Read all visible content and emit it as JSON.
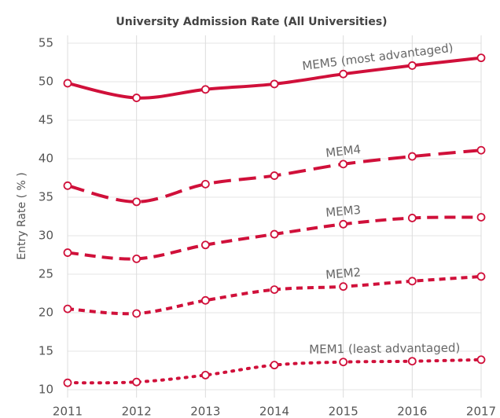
{
  "chart_data": {
    "type": "line",
    "title": "University Admission Rate (All Universities)",
    "y_label": "Entry Rate ( % )",
    "x": [
      2011,
      2012,
      2013,
      2014,
      2015,
      2016,
      2017
    ],
    "xlim": [
      2011,
      2017
    ],
    "xticks": [
      2011,
      2012,
      2013,
      2014,
      2015,
      2016,
      2017
    ],
    "ylim": [
      10,
      55
    ],
    "yticks": [
      10,
      15,
      20,
      25,
      30,
      35,
      40,
      45,
      50,
      55
    ],
    "grid": true,
    "series": [
      {
        "name": "MEM5 (most advantaged)",
        "color": "#d0103a",
        "dash": "solid",
        "values": [
          49.8,
          47.9,
          49.0,
          49.7,
          51.0,
          52.1,
          53.1
        ]
      },
      {
        "name": "MEM4",
        "color": "#d0103a",
        "dash": "long-dash",
        "values": [
          36.5,
          34.4,
          36.7,
          37.8,
          39.3,
          40.3,
          41.1
        ]
      },
      {
        "name": "MEM3",
        "color": "#d0103a",
        "dash": "dash",
        "values": [
          27.8,
          27.0,
          28.8,
          30.2,
          31.5,
          32.3,
          32.4
        ]
      },
      {
        "name": "MEM2",
        "color": "#d0103a",
        "dash": "short-dash",
        "values": [
          20.5,
          19.9,
          21.6,
          23.0,
          23.4,
          24.1,
          24.7
        ]
      },
      {
        "name": "MEM1 (least advantaged)",
        "color": "#d0103a",
        "dash": "dot",
        "values": [
          10.9,
          11.0,
          11.9,
          13.2,
          13.6,
          13.7,
          13.9
        ]
      }
    ]
  }
}
